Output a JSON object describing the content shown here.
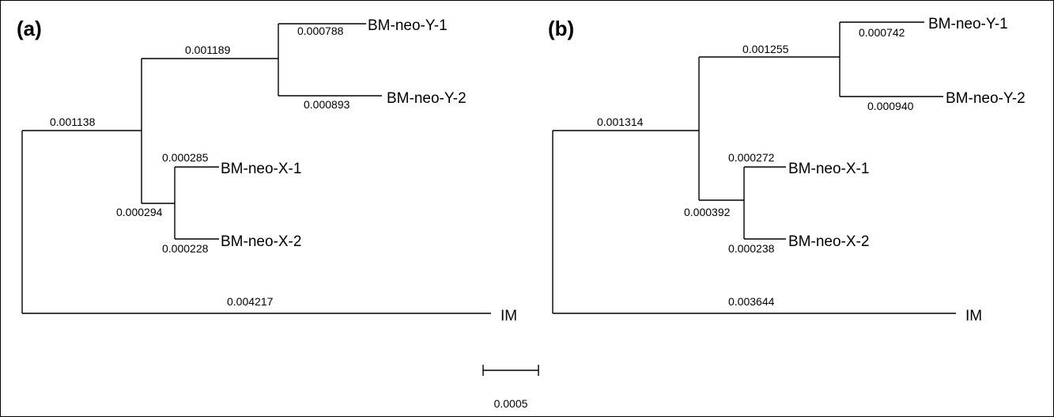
{
  "panels": [
    {
      "label": "(a)",
      "leaves": {
        "y1": "BM-neo-Y-1",
        "y2": "BM-neo-Y-2",
        "x1": "BM-neo-X-1",
        "x2": "BM-neo-X-2",
        "outgroup": "IM"
      },
      "branch_lengths": {
        "inner": "0.001138",
        "y_clade": "0.001189",
        "x_clade": "0.000294",
        "y1": "0.000788",
        "y2": "0.000893",
        "x1": "0.000285",
        "x2": "0.000228",
        "outgroup": "0.004217"
      }
    },
    {
      "label": "(b)",
      "leaves": {
        "y1": "BM-neo-Y-1",
        "y2": "BM-neo-Y-2",
        "x1": "BM-neo-X-1",
        "x2": "BM-neo-X-2",
        "outgroup": "IM"
      },
      "branch_lengths": {
        "inner": "0.001314",
        "y_clade": "0.001255",
        "x_clade": "0.000392",
        "y1": "0.000742",
        "y2": "0.000940",
        "x1": "0.000272",
        "x2": "0.000238",
        "outgroup": "0.003644"
      }
    }
  ],
  "scale_bar": {
    "label": "0.0005"
  }
}
